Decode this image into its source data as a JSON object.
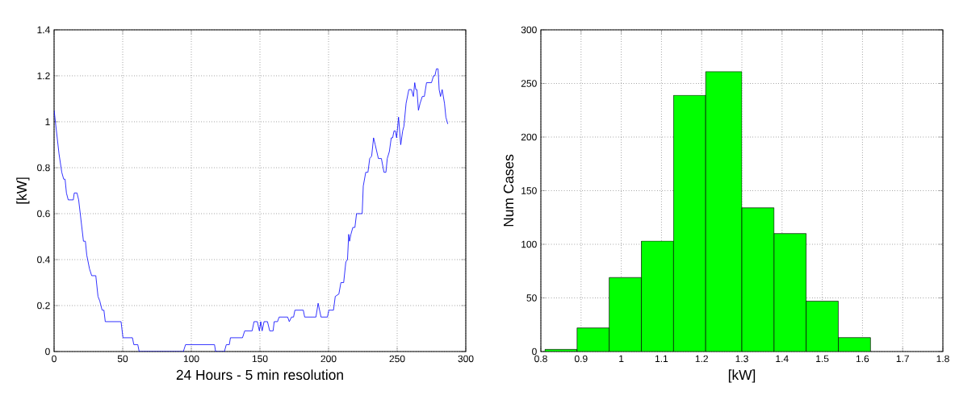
{
  "chart_data": [
    {
      "type": "line",
      "xlabel": "24 Hours - 5 min resolution",
      "ylabel": "[kW]",
      "xlim": [
        0,
        300
      ],
      "ylim": [
        0,
        1.4
      ],
      "xticks": [
        0,
        50,
        100,
        150,
        200,
        250,
        300
      ],
      "yticks": [
        0,
        0.2,
        0.4,
        0.6,
        0.8,
        1,
        1.2,
        1.4
      ],
      "grid": true,
      "series": [
        {
          "color": "#0000ff",
          "x": [
            0,
            3.6,
            5.6,
            7,
            8,
            9,
            10.3,
            14,
            14.7,
            16.7,
            17.9,
            21.4,
            22.8,
            23.8,
            25.8,
            27.4,
            30.4,
            32,
            33.3,
            35,
            36.3,
            37.3,
            48.8,
            50.2,
            57.1,
            58.1,
            61,
            62,
            94.2,
            95.8,
            116.9,
            117.7,
            124.1,
            125.5,
            127.7,
            128.5,
            137.3,
            138.9,
            144.3,
            145.7,
            148.1,
            149.6,
            150.6,
            151.6,
            153,
            155.5,
            157.1,
            159.6,
            160.4,
            162.8,
            164,
            170.2,
            171.4,
            173,
            174.5,
            175.5,
            181.6,
            182.6,
            190.8,
            192.4,
            194.5,
            199.2,
            200.2,
            203.6,
            204.9,
            207.5,
            209,
            211,
            212.6,
            213.8,
            214.7,
            215.3,
            216.3,
            217.7,
            219.2,
            220.4,
            224.5,
            225.3,
            227.1,
            228.7,
            230,
            231.4,
            232.8,
            234,
            236.3,
            238.5,
            240.4,
            241.8,
            242.8,
            244.3,
            245.7,
            246.7,
            247.7,
            248.7,
            249.6,
            251,
            252.6,
            254,
            254.9,
            256.5,
            258.5,
            260.4,
            261.8,
            262.8,
            263.6,
            264.4,
            265.5,
            266.7,
            268.3,
            269.8,
            271.4,
            275,
            276.5,
            277.5,
            278.6,
            279.8,
            280.6,
            281.6,
            282.8,
            284.5,
            285.5,
            286.9
          ],
          "values": [
            1.05,
            0.86,
            0.78,
            0.75,
            0.75,
            0.69,
            0.66,
            0.66,
            0.69,
            0.69,
            0.66,
            0.48,
            0.48,
            0.42,
            0.36,
            0.33,
            0.33,
            0.24,
            0.22,
            0.18,
            0.18,
            0.13,
            0.13,
            0.06,
            0.06,
            0.03,
            0.03,
            0,
            0,
            0.03,
            0.03,
            0,
            0,
            0.03,
            0.03,
            0.06,
            0.06,
            0.09,
            0.09,
            0.13,
            0.13,
            0.09,
            0.13,
            0.09,
            0.13,
            0.13,
            0.09,
            0.09,
            0.13,
            0.13,
            0.15,
            0.15,
            0.13,
            0.15,
            0.15,
            0.18,
            0.18,
            0.15,
            0.15,
            0.21,
            0.15,
            0.15,
            0.18,
            0.18,
            0.24,
            0.25,
            0.3,
            0.3,
            0.39,
            0.4,
            0.51,
            0.48,
            0.51,
            0.54,
            0.54,
            0.6,
            0.6,
            0.72,
            0.78,
            0.78,
            0.84,
            0.85,
            0.93,
            0.9,
            0.84,
            0.84,
            0.78,
            0.78,
            0.84,
            0.87,
            0.93,
            0.93,
            0.96,
            0.96,
            0.93,
            1.02,
            0.9,
            0.96,
            0.98,
            1.08,
            1.14,
            1.14,
            1.11,
            1.17,
            1.14,
            1.14,
            1.05,
            1.08,
            1.11,
            1.11,
            1.17,
            1.17,
            1.2,
            1.2,
            1.23,
            1.23,
            1.14,
            1.11,
            1.14,
            1.08,
            1.02,
            0.99
          ]
        }
      ]
    },
    {
      "type": "histogram",
      "xlabel": "[kW]",
      "ylabel": "Num Cases",
      "xlim": [
        0.8,
        1.8
      ],
      "ylim": [
        0,
        300
      ],
      "xticks": [
        0.8,
        0.9,
        1,
        1.1,
        1.2,
        1.3,
        1.4,
        1.5,
        1.6,
        1.7,
        1.8
      ],
      "yticks": [
        0,
        50,
        100,
        150,
        200,
        250,
        300
      ],
      "grid": true,
      "color": "#00ff00",
      "bins": [
        0.81,
        0.89,
        0.97,
        1.05,
        1.13,
        1.21,
        1.3,
        1.38,
        1.46,
        1.54,
        1.62
      ],
      "values": [
        2,
        22,
        69,
        103,
        239,
        261,
        134,
        110,
        47,
        13
      ]
    }
  ]
}
